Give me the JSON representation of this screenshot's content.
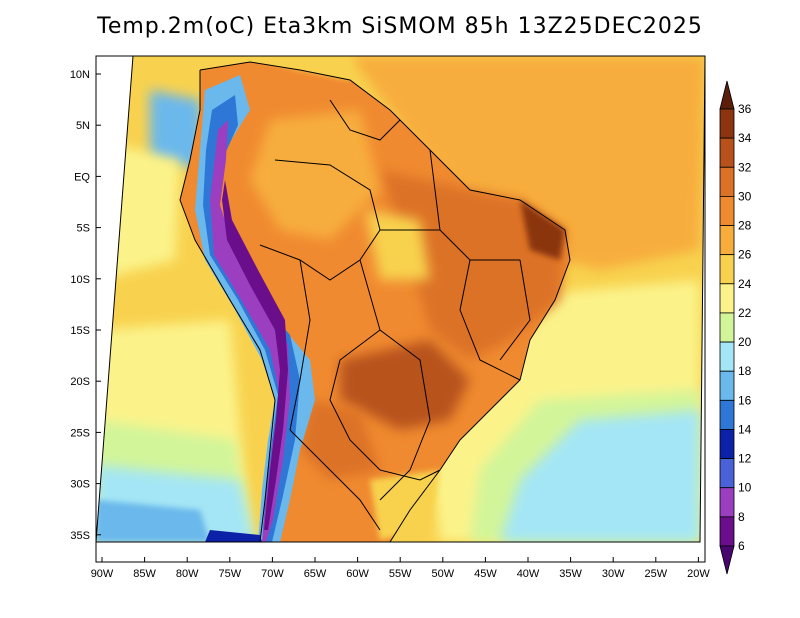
{
  "title": "Temp.2m(oC) Eta3km SiSMOM 85h 13Z25DEC2025",
  "lat_labels": [
    "10N",
    "5N",
    "EQ",
    "5S",
    "10S",
    "15S",
    "20S",
    "25S",
    "30S",
    "35S"
  ],
  "lon_labels": [
    "90W",
    "85W",
    "80W",
    "75W",
    "70W",
    "65W",
    "60W",
    "55W",
    "50W",
    "45W",
    "40W",
    "35W",
    "30W",
    "25W",
    "20W"
  ],
  "colorbar": {
    "labels": [
      "36",
      "34",
      "32",
      "30",
      "28",
      "26",
      "24",
      "22",
      "20",
      "18",
      "16",
      "14",
      "12",
      "10",
      "8",
      "6"
    ],
    "colors": [
      "#5a1e0a",
      "#8b3410",
      "#b8521c",
      "#dc7228",
      "#f08a30",
      "#f7ad3c",
      "#f8d24e",
      "#fbf38a",
      "#d2f59a",
      "#a4e6f5",
      "#6ab8ec",
      "#2f77d6",
      "#0b22a8",
      "#4a62d8",
      "#9b3fc0",
      "#6a0e8c",
      "#48066e"
    ]
  }
}
